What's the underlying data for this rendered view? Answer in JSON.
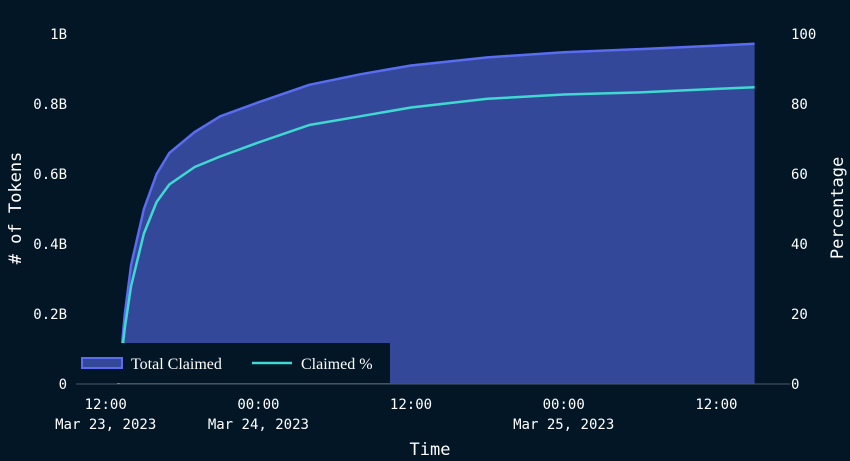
{
  "chart_data": {
    "type": "area",
    "xlabel": "Time",
    "ylabel_left": "# of Tokens",
    "ylabel_right": "Percentage",
    "x_range": [
      "2023-03-23T09:40",
      "2023-03-25T17:00"
    ],
    "ylim_left": [
      0,
      1000000000
    ],
    "ylim_right": [
      0,
      100
    ],
    "grid": false,
    "legend_placement": "bottom-left",
    "x_ticks": [
      {
        "t": "2023-03-23T12:00",
        "line1": "12:00",
        "line2": "Mar 23, 2023"
      },
      {
        "t": "2023-03-24T00:00",
        "line1": "00:00",
        "line2": "Mar 24, 2023"
      },
      {
        "t": "2023-03-24T12:00",
        "line1": "12:00",
        "line2": ""
      },
      {
        "t": "2023-03-25T00:00",
        "line1": "00:00",
        "line2": "Mar 25, 2023"
      },
      {
        "t": "2023-03-25T12:00",
        "line1": "12:00",
        "line2": ""
      }
    ],
    "y_ticks_left": [
      {
        "value": 0,
        "label": "0"
      },
      {
        "value": 200000000,
        "label": "0.2B"
      },
      {
        "value": 400000000,
        "label": "0.4B"
      },
      {
        "value": 600000000,
        "label": "0.6B"
      },
      {
        "value": 800000000,
        "label": "0.8B"
      },
      {
        "value": 1000000000,
        "label": "1B"
      }
    ],
    "y_ticks_right": [
      {
        "value": 0,
        "label": "0"
      },
      {
        "value": 20,
        "label": "20"
      },
      {
        "value": 40,
        "label": "40"
      },
      {
        "value": 60,
        "label": "60"
      },
      {
        "value": 80,
        "label": "80"
      },
      {
        "value": 100,
        "label": "100"
      }
    ],
    "series": [
      {
        "name": "Total Claimed",
        "axis": "left",
        "style": "area",
        "color": "#5a6cf0",
        "fill": "#34489a",
        "points": [
          [
            "2023-03-23T13:00",
            0
          ],
          [
            "2023-03-23T13:30",
            200000000
          ],
          [
            "2023-03-23T14:00",
            340000000
          ],
          [
            "2023-03-23T15:00",
            500000000
          ],
          [
            "2023-03-23T16:00",
            600000000
          ],
          [
            "2023-03-23T17:00",
            660000000
          ],
          [
            "2023-03-23T19:00",
            720000000
          ],
          [
            "2023-03-23T21:00",
            765000000
          ],
          [
            "2023-03-24T00:00",
            805000000
          ],
          [
            "2023-03-24T04:00",
            855000000
          ],
          [
            "2023-03-24T08:00",
            885000000
          ],
          [
            "2023-03-24T12:00",
            910000000
          ],
          [
            "2023-03-24T18:00",
            933000000
          ],
          [
            "2023-03-25T00:00",
            948000000
          ],
          [
            "2023-03-25T06:00",
            957000000
          ],
          [
            "2023-03-25T12:00",
            967000000
          ],
          [
            "2023-03-25T15:00",
            972000000
          ]
        ]
      },
      {
        "name": "Claimed %",
        "axis": "right",
        "style": "line",
        "color": "#40d8d0",
        "points": [
          [
            "2023-03-23T13:00",
            0
          ],
          [
            "2023-03-23T13:30",
            16
          ],
          [
            "2023-03-23T14:00",
            28
          ],
          [
            "2023-03-23T15:00",
            43
          ],
          [
            "2023-03-23T16:00",
            52
          ],
          [
            "2023-03-23T17:00",
            57
          ],
          [
            "2023-03-23T19:00",
            62
          ],
          [
            "2023-03-23T21:00",
            65
          ],
          [
            "2023-03-24T00:00",
            69
          ],
          [
            "2023-03-24T04:00",
            74
          ],
          [
            "2023-03-24T08:00",
            76.5
          ],
          [
            "2023-03-24T12:00",
            79
          ],
          [
            "2023-03-24T18:00",
            81.5
          ],
          [
            "2023-03-25T00:00",
            82.7
          ],
          [
            "2023-03-25T06:00",
            83.3
          ],
          [
            "2023-03-25T12:00",
            84.3
          ],
          [
            "2023-03-25T15:00",
            84.8
          ]
        ]
      }
    ]
  }
}
